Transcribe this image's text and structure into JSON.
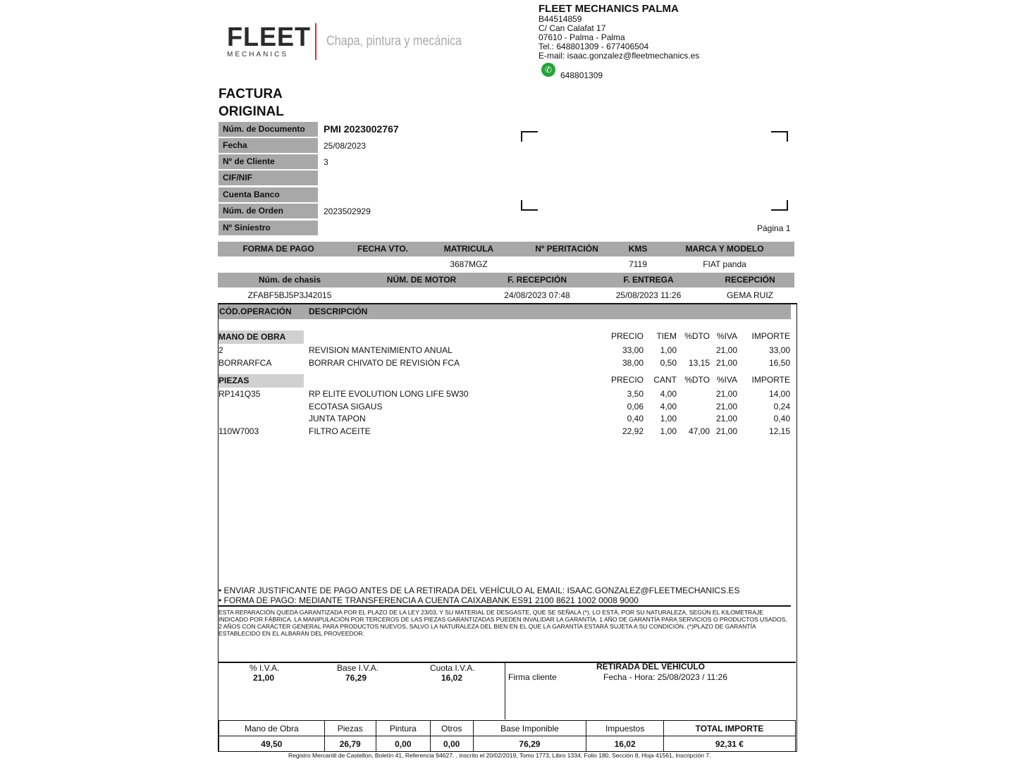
{
  "company": {
    "logo_text": "FLEET",
    "logo_sub": "MECHANICS",
    "tagline": "Chapa, pintura y mecánica",
    "name": "FLEET MECHANICS PALMA",
    "cif": "B44514859",
    "address": "C/ Can Calafat 17",
    "city": "07610 - Palma - Palma",
    "phone": "Tel.: 648801309 - 677406504",
    "email": "E-mail: isaac.gonzalez@fleetmechanics.es",
    "whatsapp": "648801309",
    "whatsapp_color": "#25a33b"
  },
  "title": {
    "line1": "FACTURA",
    "line2": "ORIGINAL"
  },
  "fields": [
    {
      "label": "Núm. de Documento",
      "value": "PMI 2023002767"
    },
    {
      "label": "Fecha",
      "value": "25/08/2023"
    },
    {
      "label": "Nº de Cliente",
      "value": "3"
    },
    {
      "label": "CIF/NIF",
      "value": ""
    },
    {
      "label": "Cuenta Banco",
      "value": ""
    },
    {
      "label": "Núm. de Orden",
      "value": "2023502929"
    },
    {
      "label": "Nº Siniestro",
      "value": ""
    }
  ],
  "page_label": "Página 1",
  "vehicle1": {
    "headers": [
      "FORMA DE PAGO",
      "FECHA VTO.",
      "MATRICULA",
      "Nº PERITACIÓN",
      "KMS",
      "MARCA Y MODELO"
    ],
    "values": [
      "",
      "",
      "3687MGZ",
      "",
      "7119",
      "FIAT panda"
    ]
  },
  "vehicle2": {
    "headers": [
      "Núm. de chasis",
      "NÚM. DE MOTOR",
      "F. RECEPCIÓN",
      "F. ENTREGA",
      "RECEPCIÓN"
    ],
    "values": [
      "ZFABF5BJ5P3J42015",
      "",
      "24/08/2023 07:48",
      "25/08/2023 11:26",
      "GEMA RUIZ"
    ]
  },
  "lines_header": {
    "code": "CÓD.OPERACIÓN",
    "desc": "DESCRIPCIÓN"
  },
  "labor": {
    "title": "MANO DE OBRA",
    "cols": [
      "PRECIO",
      "TIEM",
      "%DTO",
      "%IVA",
      "IMPORTE"
    ],
    "rows": [
      {
        "code": "2",
        "desc": "REVISION MANTENIMIENTO ANUAL",
        "price": "33,00",
        "qty": "1,00",
        "dto": "",
        "iva": "21,00",
        "amount": "33,00"
      },
      {
        "code": "BORRARFCA",
        "desc": "BORRAR CHIVATO DE REVISIÓN FCA",
        "price": "38,00",
        "qty": "0,50",
        "dto": "13,15",
        "iva": "21,00",
        "amount": "16,50"
      }
    ]
  },
  "parts": {
    "title": "PIEZAS",
    "cols": [
      "PRECIO",
      "CANT",
      "%DTO",
      "%IVA",
      "IMPORTE"
    ],
    "rows": [
      {
        "code": "RP141Q35",
        "desc": "RP ELITE EVOLUTION LONG LIFE 5W30",
        "price": "3,50",
        "qty": "4,00",
        "dto": "",
        "iva": "21,00",
        "amount": "14,00"
      },
      {
        "code": "",
        "desc": "ECOTASA SIGAUS",
        "price": "0,06",
        "qty": "4,00",
        "dto": "",
        "iva": "21,00",
        "amount": "0,24"
      },
      {
        "code": "",
        "desc": "JUNTA TAPON",
        "price": "0,40",
        "qty": "1,00",
        "dto": "",
        "iva": "21,00",
        "amount": "0,40"
      },
      {
        "code": "110W7003",
        "desc": "FILTRO ACEITE",
        "price": "22,92",
        "qty": "1,00",
        "dto": "47,00",
        "iva": "21,00",
        "amount": "12,15"
      }
    ]
  },
  "notes": [
    "• ENVIAR JUSTIFICANTE DE PAGO ANTES DE LA RETIRADA DEL VEHÍCULO AL EMAIL: ISAAC.GONZALEZ@FLEETMECHANICS.ES",
    "• FORMA DE PAGO: MEDIANTE TRANSFERENCIA A CUENTA CAIXABANK ES91 2100 8621 1002 0008 9000"
  ],
  "warranty": "ESTA REPARACIÓN QUEDA GARANTIZADA POR EL PLAZO DE LA LEY 23/03, Y SU MATERIAL DE DESGASTE, QUE SE SEÑALA (*), LO ESTÁ, POR SU NATURALEZA, SEGÚN EL KILOMETRAJE INDICADO POR FÁBRICA. LA MANIPULACIÓN POR TERCEROS DE LAS PIEZAS GARANTIZADAS PUEDEN INVALIDAR LA GARANTÍA. 1 AÑO DE GARANTÍA PARA SERVICIOS O PRODUCTOS USADOS, 2 AÑOS CON CARÁCTER GENERAL PARA PRODUCTOS NUEVOS, SALVO LA NATURALEZA DEL BIEN EN EL QUE LA GARANTÍA ESTARÁ SUJETA A SU CONDICIÓN. (*)PLAZO DE GARANTÍA ESTABLECIDO EN EL ALBARÁN DEL PROVEEDOR.",
  "vat": {
    "pct_label": "% I.V.A.",
    "pct": "21,00",
    "base_label": "Base I.V.A.",
    "base": "76,29",
    "quota_label": "Cuota I.V.A.",
    "quota": "16,02"
  },
  "pickup": {
    "title": "RETIRADA DEL VEHÍCULO",
    "signature": "Firma cliente",
    "datetime": "Fecha - Hora: 25/08/2023 / 11:26"
  },
  "totals": {
    "headers": [
      "Mano de Obra",
      "Piezas",
      "Pintura",
      "Otros",
      "Base Imponible",
      "Impuestos",
      "TOTAL IMPORTE"
    ],
    "values": [
      "49,50",
      "26,79",
      "0,00",
      "0,00",
      "76,29",
      "16,02",
      "92,31 €"
    ]
  },
  "registry": "Registro Mercantil de Castellon, Boletín 41, Referencia 94627. , inscrito el 20/02/2019, Tomo 1773, Libro 1334, Folio 180, Sección 8, Hoja 41561, Inscripción 7."
}
